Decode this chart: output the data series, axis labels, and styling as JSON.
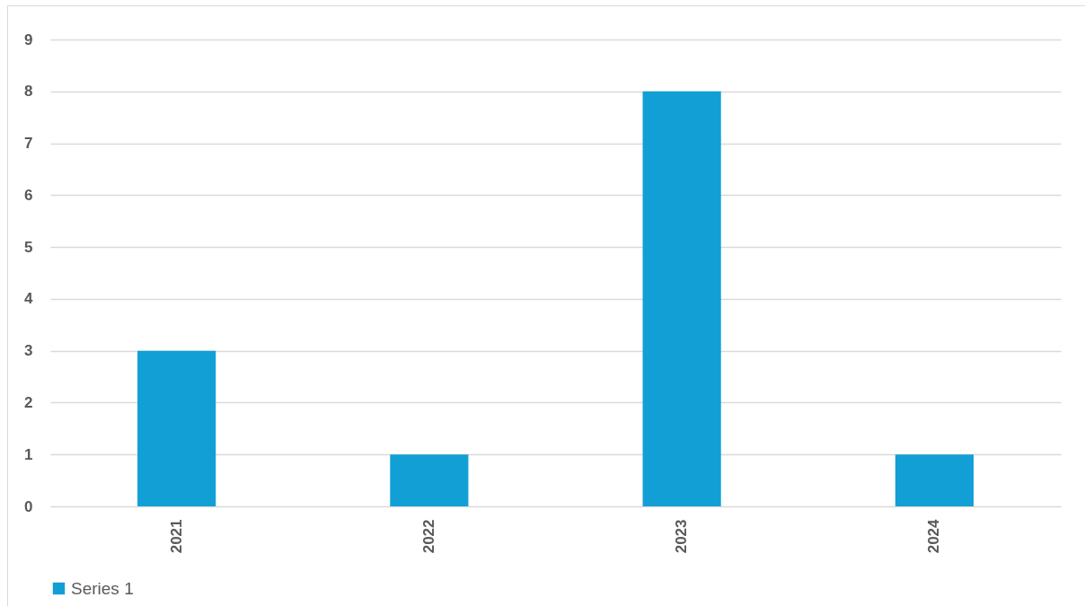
{
  "chart_data": {
    "type": "bar",
    "categories": [
      "2021",
      "2022",
      "2023",
      "2024"
    ],
    "series": [
      {
        "name": "Series 1",
        "color": "#129fd6",
        "values": [
          3,
          1,
          8,
          1
        ]
      }
    ],
    "ylim": [
      0,
      9
    ],
    "yticks": [
      0,
      1,
      2,
      3,
      4,
      5,
      6,
      7,
      8,
      9
    ],
    "grid": "y",
    "legend": "bottom"
  }
}
